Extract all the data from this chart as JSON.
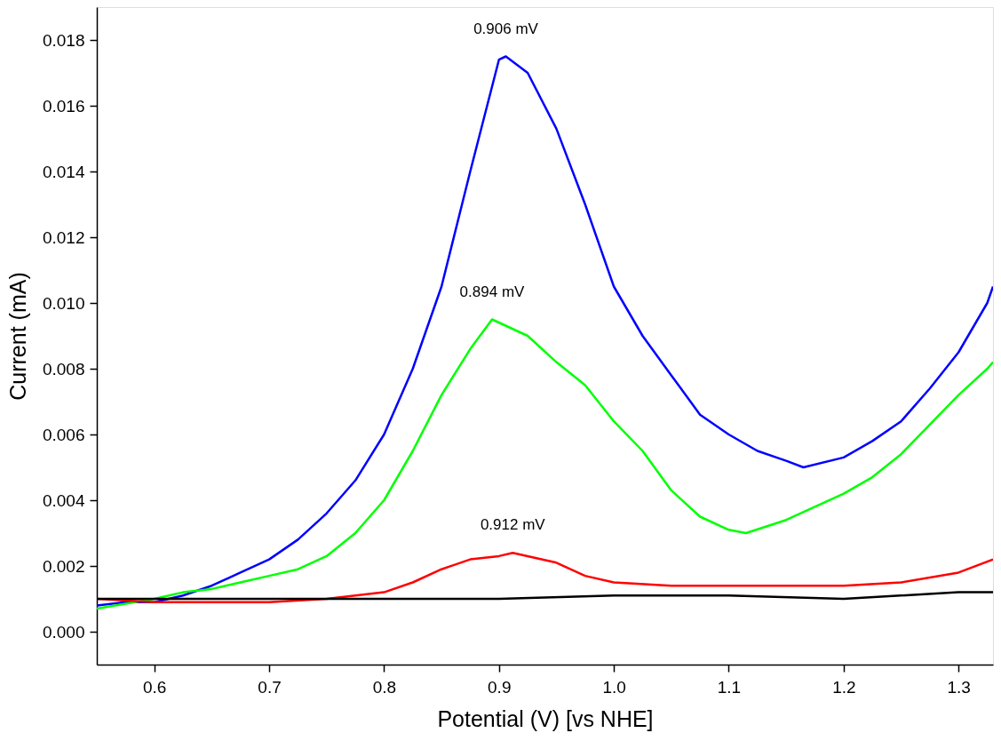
{
  "chart_data": {
    "type": "line",
    "xlabel": "Potential (V) [vs NHE]",
    "ylabel": "Current (mA)",
    "xlim": [
      0.55,
      1.33
    ],
    "ylim": [
      -0.001,
      0.019
    ],
    "xticks": [
      0.6,
      0.7,
      0.8,
      0.9,
      {
        "value": 1.0,
        "label": "1.0"
      },
      1.1,
      1.2,
      1.3
    ],
    "yticks": [
      {
        "value": 0,
        "label": "0.000"
      },
      0.002,
      0.004,
      0.006,
      0.008,
      {
        "value": 0.01,
        "label": "0.010"
      },
      0.012,
      0.014,
      0.016,
      0.018
    ],
    "grid": false,
    "line_style": "solid",
    "marker": "none",
    "series": [
      {
        "color": "#0000ff",
        "x": [
          0.55,
          0.575,
          0.6,
          0.625,
          0.65,
          0.675,
          0.7,
          0.725,
          0.75,
          0.775,
          0.8,
          0.825,
          0.85,
          0.875,
          0.9,
          0.906,
          0.925,
          0.95,
          0.975,
          1.0,
          1.025,
          1.05,
          1.075,
          1.1,
          1.125,
          1.15,
          1.165,
          1.2,
          1.225,
          1.25,
          1.275,
          1.3,
          1.325,
          1.33
        ],
        "values": [
          0.0008,
          0.0009,
          0.0009,
          0.0011,
          0.0014,
          0.0018,
          0.0022,
          0.0028,
          0.0036,
          0.0046,
          0.006,
          0.008,
          0.0105,
          0.014,
          0.0174,
          0.0175,
          0.017,
          0.0153,
          0.013,
          0.0105,
          0.009,
          0.0078,
          0.0066,
          0.006,
          0.0055,
          0.0052,
          0.005,
          0.0053,
          0.0058,
          0.0064,
          0.0074,
          0.0085,
          0.01,
          0.0105
        ]
      },
      {
        "color": "#00ff00",
        "x": [
          0.55,
          0.6,
          0.625,
          0.65,
          0.675,
          0.7,
          0.725,
          0.75,
          0.775,
          0.8,
          0.825,
          0.85,
          0.875,
          0.894,
          0.925,
          0.95,
          0.975,
          1.0,
          1.025,
          1.05,
          1.075,
          1.1,
          1.115,
          1.15,
          1.175,
          1.2,
          1.225,
          1.25,
          1.275,
          1.3,
          1.325,
          1.33
        ],
        "values": [
          0.0007,
          0.001,
          0.0012,
          0.0013,
          0.0015,
          0.0017,
          0.0019,
          0.0023,
          0.003,
          0.004,
          0.0055,
          0.0072,
          0.0086,
          0.0095,
          0.009,
          0.0082,
          0.0075,
          0.0064,
          0.0055,
          0.0043,
          0.0035,
          0.0031,
          0.003,
          0.0034,
          0.0038,
          0.0042,
          0.0047,
          0.0054,
          0.0063,
          0.0072,
          0.008,
          0.0082
        ]
      },
      {
        "color": "#ff0000",
        "x": [
          0.55,
          0.6,
          0.7,
          0.75,
          0.8,
          0.825,
          0.85,
          0.875,
          0.9,
          0.912,
          0.95,
          0.975,
          1.0,
          1.05,
          1.1,
          1.15,
          1.2,
          1.25,
          1.3,
          1.33
        ],
        "values": [
          0.001,
          0.0009,
          0.0009,
          0.001,
          0.0012,
          0.0015,
          0.0019,
          0.0022,
          0.0023,
          0.0024,
          0.0021,
          0.0017,
          0.0015,
          0.0014,
          0.0014,
          0.0014,
          0.0014,
          0.0015,
          0.0018,
          0.0022
        ]
      },
      {
        "color": "#000000",
        "x": [
          0.55,
          0.6,
          0.7,
          0.8,
          0.9,
          1.0,
          1.1,
          1.2,
          1.3,
          1.33
        ],
        "values": [
          0.001,
          0.001,
          0.001,
          0.001,
          0.001,
          0.0011,
          0.0011,
          0.001,
          0.0012,
          0.0012
        ]
      }
    ],
    "annotations": [
      {
        "text": "0.906 mV",
        "x": 0.906,
        "y": 0.0175
      },
      {
        "text": "0.894 mV",
        "x": 0.894,
        "y": 0.0095
      },
      {
        "text": "0.912 mV",
        "x": 0.912,
        "y": 0.0024
      }
    ]
  }
}
